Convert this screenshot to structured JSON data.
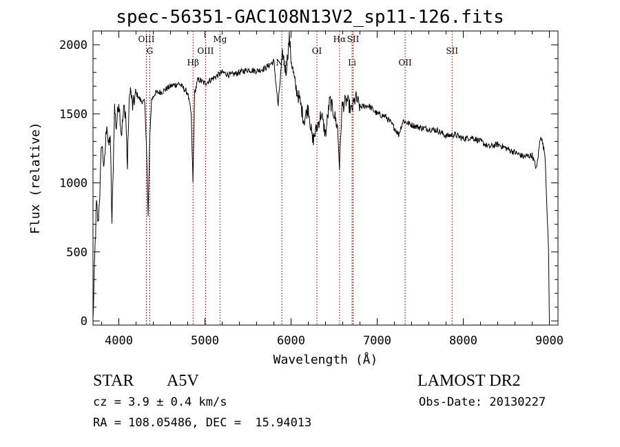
{
  "title": "spec-56351-GAC108N13V2_sp11-126.fits",
  "info": {
    "class": "STAR",
    "subclass": "A5V",
    "cz": "cz = 3.9 ± 0.4 km/s",
    "coords": "RA = 108.05486, DEC =  15.94013",
    "survey": "LAMOST DR2",
    "obs_date": "Obs-Date: 20130227"
  },
  "chart_data": {
    "type": "line",
    "title": "spec-56351-GAC108N13V2_sp11-126.fits",
    "xlabel": "Wavelength (Å)",
    "ylabel": "Flux (relative)",
    "xlim": [
      3700,
      9100
    ],
    "ylim": [
      -30,
      2100
    ],
    "xticks": [
      4000,
      5000,
      6000,
      7000,
      8000,
      9000
    ],
    "yticks": [
      0,
      500,
      1000,
      1500,
      2000
    ],
    "grid": false,
    "series": [
      {
        "x": [
          3700,
          3720,
          3740,
          3760,
          3780,
          3800,
          3830,
          3860,
          3880,
          3900,
          3920,
          3950,
          3970,
          4000,
          4030,
          4060,
          4080,
          4100,
          4110,
          4130,
          4160,
          4200,
          4250,
          4300,
          4320,
          4340,
          4360,
          4380,
          4420,
          4500,
          4600,
          4700,
          4800,
          4840,
          4861,
          4880,
          4920,
          5000,
          5100,
          5200,
          5300,
          5400,
          5500,
          5600,
          5700,
          5800,
          5850,
          5900,
          5940,
          5980,
          6000,
          6050,
          6100,
          6150,
          6200,
          6250,
          6300,
          6350,
          6400,
          6450,
          6500,
          6540,
          6563,
          6590,
          6650,
          6700,
          6750,
          6800,
          6900,
          7000,
          7100,
          7200,
          7250,
          7300,
          7400,
          7500,
          7600,
          7700,
          7800,
          7900,
          8000,
          8100,
          8200,
          8300,
          8400,
          8500,
          8600,
          8700,
          8800,
          8850,
          8900,
          8950,
          8990,
          9000
        ],
        "y": [
          0,
          450,
          850,
          700,
          950,
          1300,
          1100,
          1450,
          1250,
          1350,
          700,
          1550,
          1400,
          1600,
          1350,
          1550,
          1500,
          1100,
          1400,
          1700,
          1550,
          1650,
          1600,
          1580,
          1300,
          750,
          1350,
          1600,
          1650,
          1660,
          1700,
          1720,
          1650,
          1500,
          1000,
          1650,
          1750,
          1720,
          1760,
          1800,
          1780,
          1800,
          1820,
          1810,
          1830,
          1880,
          1560,
          1950,
          1800,
          2050,
          1900,
          1700,
          1600,
          1450,
          1550,
          1300,
          1400,
          1500,
          1350,
          1600,
          1500,
          1400,
          1120,
          1550,
          1600,
          1520,
          1620,
          1550,
          1560,
          1500,
          1480,
          1400,
          1350,
          1450,
          1420,
          1400,
          1390,
          1380,
          1340,
          1350,
          1320,
          1330,
          1300,
          1260,
          1280,
          1250,
          1220,
          1190,
          1200,
          1100,
          1350,
          1200,
          500,
          0
        ]
      }
    ],
    "line_markers": [
      {
        "label": "OIII",
        "x": 4320,
        "row": 0
      },
      {
        "label": "G",
        "x": 4360,
        "row": 1
      },
      {
        "label": "Hβ",
        "x": 4862,
        "row": 2
      },
      {
        "label": "OIII",
        "x": 5007,
        "row": 1
      },
      {
        "label": "Mg",
        "x": 5175,
        "row": 0
      },
      {
        "label": "Na",
        "x": 5893,
        "row": 2
      },
      {
        "label": "OI",
        "x": 6300,
        "row": 1
      },
      {
        "label": "Hα",
        "x": 6563,
        "row": 0
      },
      {
        "label": "SII",
        "x": 6720,
        "row": 0
      },
      {
        "label": "Li",
        "x": 6708,
        "row": 2
      },
      {
        "label": "OII",
        "x": 7325,
        "row": 2
      },
      {
        "label": "SII",
        "x": 7870,
        "row": 1
      }
    ],
    "colors": {
      "spectrum": "#000000",
      "markers": "#b22222"
    }
  }
}
